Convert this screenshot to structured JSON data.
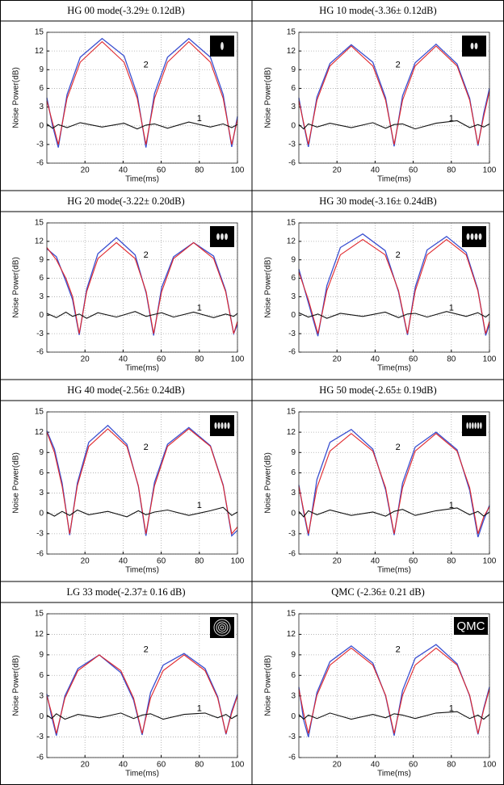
{
  "chart_data": [
    {
      "type": "line",
      "title": "HG 00 mode(-3.29± 0.12dB)",
      "xlabel": "Time(ms)",
      "ylabel": "Noise Power(dB)",
      "xlim": [
        0,
        100
      ],
      "ylim": [
        -6,
        15
      ],
      "xticks": [
        20,
        40,
        60,
        80,
        100
      ],
      "yticks": [
        -6,
        -3,
        0,
        3,
        6,
        9,
        12,
        15
      ],
      "grid": true,
      "x": [
        0,
        3,
        6,
        10.6,
        17.5,
        29,
        40.5,
        47.4,
        52,
        56.5,
        63.3,
        74.5,
        85.8,
        92.5,
        97,
        100
      ],
      "series": [
        {
          "label": "2",
          "color": "#3a4fd0",
          "values": [
            4.5,
            0,
            -3.5,
            5,
            11,
            14,
            11.2,
            5,
            -3.5,
            5.2,
            11,
            14,
            11,
            5,
            -3.4,
            1.5
          ]
        },
        {
          "color": "#e0262b",
          "values": [
            4,
            0.5,
            -3,
            4.4,
            10.2,
            13.5,
            10.2,
            4.4,
            -3,
            4.4,
            10.2,
            13.5,
            10.2,
            4.4,
            -3,
            1
          ]
        },
        {
          "label": "1",
          "color": "#111111",
          "values": [
            0.3,
            -0.4,
            0.2,
            -0.3,
            0.5,
            -0.2,
            0.4,
            -0.5,
            0.1,
            0.3,
            -0.4,
            0.6,
            -0.2,
            0.3,
            -0.3,
            0.2
          ]
        }
      ]
    },
    {
      "type": "line",
      "title": "HG 10 mode(-3.36± 0.12dB)",
      "xlabel": "Time(ms)",
      "ylabel": "Noise Power(dB)",
      "xlim": [
        0,
        100
      ],
      "ylim": [
        -6,
        15
      ],
      "xticks": [
        20,
        40,
        60,
        80,
        100
      ],
      "yticks": [
        -6,
        -3,
        0,
        3,
        6,
        9,
        12,
        15
      ],
      "grid": true,
      "x": [
        0,
        2.5,
        5,
        9.5,
        16.3,
        27.5,
        38.8,
        45.5,
        50,
        54.4,
        61,
        72,
        83,
        89.6,
        94,
        97,
        100
      ],
      "series": [
        {
          "label": "2",
          "color": "#3a4fd0",
          "values": [
            4.5,
            0.3,
            -3.4,
            4.6,
            10,
            13,
            10.2,
            4.5,
            -3.3,
            4.8,
            10.1,
            13.1,
            9.9,
            4.4,
            -3.2,
            2,
            6
          ]
        },
        {
          "color": "#e0262b",
          "values": [
            4,
            0.5,
            -3,
            4.1,
            9.6,
            12.8,
            9.6,
            4.1,
            -3,
            4.1,
            9.6,
            12.8,
            9.6,
            4.1,
            -3,
            1.5,
            5.5
          ]
        },
        {
          "label": "1",
          "color": "#111111",
          "values": [
            0.2,
            -0.5,
            0.3,
            -0.2,
            0.4,
            -0.3,
            0.5,
            -0.4,
            0.2,
            0.3,
            -0.5,
            0.4,
            0.8,
            -0.3,
            0.2,
            -0.2,
            0.3
          ]
        }
      ]
    },
    {
      "type": "line",
      "title": "HG 20 mode(-3.22± 0.20dB)",
      "xlabel": "Time(ms)",
      "ylabel": "Noise Power(dB)",
      "xlim": [
        0,
        100
      ],
      "ylim": [
        -6,
        15
      ],
      "xticks": [
        20,
        40,
        60,
        80,
        100
      ],
      "yticks": [
        -6,
        -3,
        0,
        3,
        6,
        9,
        12,
        15
      ],
      "grid": true,
      "x": [
        0,
        5,
        10,
        13.5,
        17,
        20.9,
        26.8,
        36.5,
        46.3,
        52.1,
        56,
        60.2,
        66.5,
        77,
        87.5,
        93.8,
        98,
        100
      ],
      "series": [
        {
          "label": "2",
          "color": "#3a4fd0",
          "values": [
            10.8,
            9.5,
            5.5,
            2.5,
            -3.2,
            4.2,
            10,
            12.6,
            9.8,
            3.6,
            -3.3,
            4.5,
            9.5,
            11.8,
            9.6,
            4,
            -3,
            -1.5
          ]
        },
        {
          "color": "#e0262b",
          "values": [
            11,
            9,
            6,
            3,
            -3,
            3.8,
            9.2,
            11.8,
            9.2,
            3.8,
            -3,
            3.8,
            9.2,
            11.8,
            9.2,
            3.8,
            -3,
            -1
          ]
        },
        {
          "label": "1",
          "color": "#111111",
          "values": [
            0.3,
            -0.4,
            0.5,
            -0.2,
            0.2,
            -0.5,
            0.4,
            -0.3,
            0.6,
            -0.2,
            0.1,
            0.4,
            -0.3,
            0.5,
            -0.4,
            0.2,
            -0.2,
            0.3
          ]
        }
      ]
    },
    {
      "type": "line",
      "title": "HG 30 mode(-3.16± 0.24dB)",
      "xlabel": "Time(ms)",
      "ylabel": "Noise Power(dB)",
      "xlim": [
        0,
        100
      ],
      "ylim": [
        -6,
        15
      ],
      "xticks": [
        20,
        40,
        60,
        80,
        100
      ],
      "yticks": [
        -6,
        -3,
        0,
        3,
        6,
        9,
        12,
        15
      ],
      "grid": true,
      "x": [
        0,
        5,
        10,
        14.7,
        21.8,
        33.5,
        45.3,
        52.3,
        57,
        61.1,
        67.3,
        77.5,
        87.8,
        93.9,
        98,
        100
      ],
      "series": [
        {
          "label": "2",
          "color": "#3a4fd0",
          "values": [
            7.5,
            2,
            -3.4,
            4.8,
            11,
            13.2,
            10.5,
            3.8,
            -3.2,
            4.6,
            10.6,
            12.8,
            10.2,
            4.2,
            -3.3,
            -1.5
          ]
        },
        {
          "color": "#e0262b",
          "values": [
            7,
            2.5,
            -3,
            4,
            9.8,
            12.3,
            9.8,
            4,
            -3,
            4,
            9.8,
            12.3,
            9.8,
            4,
            -3,
            -1
          ]
        },
        {
          "label": "1",
          "color": "#111111",
          "values": [
            0.4,
            -0.3,
            0.2,
            -0.5,
            0.3,
            -0.2,
            0.5,
            -0.4,
            0.2,
            0.3,
            -0.3,
            0.6,
            -0.2,
            0.4,
            -0.3,
            0.2
          ]
        }
      ]
    },
    {
      "type": "line",
      "title": "HG 40 mode(-2.56± 0.24dB)",
      "xlabel": "Time(ms)",
      "ylabel": "Noise Power(dB)",
      "xlim": [
        0,
        100
      ],
      "ylim": [
        -6,
        15
      ],
      "xticks": [
        20,
        40,
        60,
        80,
        100
      ],
      "yticks": [
        -6,
        -3,
        0,
        3,
        6,
        9,
        12,
        15
      ],
      "grid": true,
      "x": [
        0,
        4,
        8,
        12,
        16,
        22,
        32,
        42,
        48,
        52,
        56.5,
        63.3,
        74.5,
        85.8,
        92.5,
        97,
        100
      ],
      "series": [
        {
          "label": "2",
          "color": "#3a4fd0",
          "values": [
            12.2,
            9.5,
            4.5,
            -3.2,
            4.5,
            10.5,
            13,
            10.2,
            4,
            -3.3,
            4.6,
            10.2,
            12.7,
            10,
            4.2,
            -3.3,
            -2.5
          ]
        },
        {
          "color": "#e0262b",
          "values": [
            12,
            9,
            4,
            -3,
            4.1,
            9.9,
            12.5,
            9.9,
            4.1,
            -3,
            4.1,
            9.9,
            12.5,
            9.9,
            4.1,
            -3,
            -2
          ]
        },
        {
          "label": "1",
          "color": "#111111",
          "values": [
            0.2,
            -0.4,
            0.3,
            -0.3,
            0.5,
            -0.2,
            0.3,
            -0.5,
            0.4,
            -0.2,
            0.2,
            0.5,
            -0.3,
            0.4,
            0.9,
            -0.3,
            0.2
          ]
        }
      ]
    },
    {
      "type": "line",
      "title": "HG 50 mode(-2.65± 0.19dB)",
      "xlabel": "Time(ms)",
      "ylabel": "Noise Power(dB)",
      "xlim": [
        0,
        100
      ],
      "ylim": [
        -6,
        15
      ],
      "xticks": [
        20,
        40,
        60,
        80,
        100
      ],
      "yticks": [
        -6,
        -3,
        0,
        3,
        6,
        9,
        12,
        15
      ],
      "grid": true,
      "x": [
        0,
        2.5,
        5,
        9.5,
        16.3,
        27.5,
        38.8,
        45.5,
        50,
        54.4,
        61,
        72,
        83,
        89.6,
        94,
        97,
        100
      ],
      "series": [
        {
          "label": "2",
          "color": "#3a4fd0",
          "values": [
            4.2,
            0.2,
            -3.3,
            5,
            10.5,
            12.4,
            9.5,
            3.5,
            -3.2,
            4.5,
            9.8,
            12,
            9.4,
            3.4,
            -3.5,
            -1,
            1.2
          ]
        },
        {
          "color": "#e0262b",
          "values": [
            4,
            0.5,
            -3,
            3.8,
            9.2,
            11.8,
            9.2,
            3.8,
            -3,
            3.8,
            9.2,
            11.8,
            9.2,
            3.8,
            -3,
            -0.5,
            1
          ]
        },
        {
          "label": "1",
          "color": "#111111",
          "values": [
            0.3,
            -0.5,
            0.4,
            -0.2,
            0.5,
            -0.3,
            0.2,
            -0.4,
            0.3,
            0.6,
            -0.3,
            0.4,
            0.8,
            -0.2,
            0.3,
            -0.4,
            0.2
          ]
        }
      ]
    },
    {
      "type": "line",
      "title": "LG 33 mode(-2.37± 0.16 dB)",
      "xlabel": "Time(ms)",
      "ylabel": "Noise Power(dB)",
      "xlim": [
        0,
        100
      ],
      "ylim": [
        -6,
        15
      ],
      "xticks": [
        20,
        40,
        60,
        80,
        100
      ],
      "yticks": [
        -6,
        -3,
        0,
        3,
        6,
        9,
        12,
        15
      ],
      "grid": true,
      "x": [
        0,
        2.5,
        5,
        9.5,
        16.3,
        27.5,
        38.8,
        45.5,
        50,
        54.4,
        61,
        72,
        83,
        89.6,
        94,
        97,
        100
      ],
      "series": [
        {
          "label": "2",
          "color": "#3a4fd0",
          "values": [
            3.3,
            0,
            -2.8,
            3,
            7,
            9,
            6.4,
            2.4,
            -2.7,
            3.5,
            7.5,
            9.2,
            7,
            2.9,
            -2.6,
            0.8,
            3.2
          ]
        },
        {
          "color": "#e0262b",
          "values": [
            3,
            0.5,
            -2.5,
            2.7,
            6.7,
            9,
            6.7,
            2.7,
            -2.5,
            2.7,
            6.7,
            9,
            6.7,
            2.7,
            -2.5,
            0.5,
            3
          ]
        },
        {
          "label": "1",
          "color": "#111111",
          "values": [
            0.2,
            -0.3,
            0.4,
            -0.4,
            0.3,
            -0.2,
            0.5,
            -0.3,
            0.2,
            0.4,
            -0.4,
            0.3,
            0.5,
            -0.2,
            0.3,
            -0.3,
            0.2
          ]
        }
      ]
    },
    {
      "type": "line",
      "title": "QMC (-2.36± 0.21 dB)",
      "inset_label": "QMC",
      "xlabel": "Time(ms)",
      "ylabel": "Noise Power(dB)",
      "xlim": [
        0,
        100
      ],
      "ylim": [
        -6,
        15
      ],
      "xticks": [
        20,
        40,
        60,
        80,
        100
      ],
      "yticks": [
        -6,
        -3,
        0,
        3,
        6,
        9,
        12,
        15
      ],
      "grid": true,
      "x": [
        0,
        2.5,
        5,
        9.5,
        16.3,
        27.5,
        38.8,
        45.5,
        50,
        54.4,
        61,
        72,
        83,
        89.6,
        94,
        97,
        100
      ],
      "series": [
        {
          "label": "2",
          "color": "#3a4fd0",
          "values": [
            4.3,
            -0.5,
            -3,
            3.5,
            8,
            10.3,
            7.8,
            3,
            -2.8,
            3.8,
            8.5,
            10.5,
            7.7,
            3,
            -2.6,
            1.2,
            4.3
          ]
        },
        {
          "color": "#e0262b",
          "values": [
            4,
            0.5,
            -2.5,
            3.1,
            7.5,
            10,
            7.5,
            3.1,
            -2.5,
            3.1,
            7.5,
            10,
            7.5,
            3.1,
            -2.5,
            1,
            4
          ]
        },
        {
          "label": "1",
          "color": "#111111",
          "values": [
            0.3,
            -0.4,
            0.2,
            -0.3,
            0.5,
            -0.4,
            0.3,
            -0.2,
            0.4,
            0.2,
            -0.3,
            0.5,
            0.7,
            -0.3,
            0.2,
            -0.4,
            0.3
          ]
        }
      ]
    }
  ]
}
